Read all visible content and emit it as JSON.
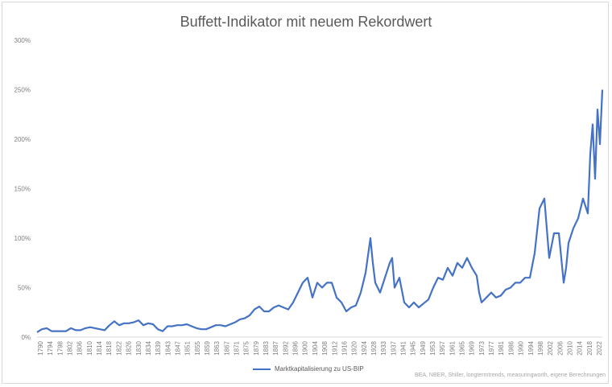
{
  "chart_data": {
    "type": "line",
    "title": "Buffett-Indikator mit neuem Rekordwert",
    "xlabel": "",
    "ylabel": "",
    "ylim": [
      0,
      300
    ],
    "y_ticks": [
      "0%",
      "50%",
      "100%",
      "150%",
      "200%",
      "250%",
      "300%"
    ],
    "x_tick_labels": [
      "1790",
      "1794",
      "1798",
      "1802",
      "1806",
      "1810",
      "1814",
      "1818",
      "1822",
      "1826",
      "1830",
      "1834",
      "1839",
      "1843",
      "1847",
      "1851",
      "1855",
      "1859",
      "1863",
      "1867",
      "1871",
      "1875",
      "1879",
      "1883",
      "1887",
      "1892",
      "1896",
      "1900",
      "1904",
      "1908",
      "1912",
      "1916",
      "1920",
      "1924",
      "1928",
      "1933",
      "1937",
      "1941",
      "1945",
      "1949",
      "1953",
      "1957",
      "1961",
      "1965",
      "1969",
      "1973",
      "1977",
      "1981",
      "1986",
      "1990",
      "1994",
      "1998",
      "2002",
      "2006",
      "2010",
      "2014",
      "2018",
      "2022"
    ],
    "grid": false,
    "legend_position": "bottom",
    "series": [
      {
        "name": "Marktkapitalisierung zu US-BIP",
        "color": "#4472c4",
        "x": [
          1790,
          1792,
          1794,
          1796,
          1798,
          1800,
          1802,
          1804,
          1806,
          1808,
          1810,
          1812,
          1814,
          1816,
          1818,
          1820,
          1822,
          1824,
          1826,
          1828,
          1830,
          1832,
          1834,
          1836,
          1838,
          1840,
          1842,
          1844,
          1846,
          1848,
          1850,
          1852,
          1854,
          1856,
          1858,
          1860,
          1862,
          1864,
          1866,
          1868,
          1870,
          1872,
          1874,
          1876,
          1878,
          1880,
          1882,
          1884,
          1886,
          1888,
          1890,
          1892,
          1894,
          1896,
          1898,
          1900,
          1902,
          1904,
          1906,
          1908,
          1910,
          1912,
          1914,
          1916,
          1918,
          1920,
          1922,
          1924,
          1926,
          1928,
          1929,
          1930,
          1932,
          1934,
          1936,
          1937,
          1938,
          1940,
          1942,
          1944,
          1946,
          1948,
          1950,
          1952,
          1954,
          1956,
          1958,
          1960,
          1962,
          1964,
          1966,
          1968,
          1970,
          1972,
          1973,
          1974,
          1976,
          1978,
          1980,
          1982,
          1984,
          1986,
          1988,
          1990,
          1992,
          1994,
          1996,
          1998,
          2000,
          2002,
          2004,
          2006,
          2008,
          2009,
          2010,
          2012,
          2014,
          2016,
          2018,
          2019,
          2020,
          2021,
          2022,
          2023,
          2024
        ],
        "y": [
          5,
          8,
          9,
          6,
          6,
          6,
          6,
          9,
          7,
          7,
          9,
          10,
          9,
          8,
          7,
          12,
          16,
          12,
          14,
          14,
          15,
          17,
          12,
          14,
          13,
          8,
          6,
          11,
          11,
          12,
          12,
          13,
          11,
          9,
          8,
          8,
          10,
          12,
          12,
          11,
          13,
          15,
          18,
          19,
          22,
          28,
          31,
          26,
          26,
          30,
          32,
          30,
          28,
          35,
          45,
          55,
          60,
          40,
          55,
          50,
          55,
          55,
          40,
          35,
          26,
          30,
          32,
          45,
          65,
          100,
          75,
          55,
          45,
          60,
          75,
          80,
          50,
          60,
          35,
          30,
          35,
          30,
          34,
          38,
          50,
          60,
          58,
          70,
          62,
          75,
          70,
          80,
          70,
          62,
          45,
          35,
          40,
          45,
          40,
          42,
          48,
          50,
          55,
          55,
          60,
          60,
          85,
          130,
          140,
          80,
          105,
          105,
          55,
          70,
          95,
          110,
          120,
          140,
          125,
          185,
          215,
          160,
          230,
          195,
          250
        ]
      }
    ],
    "source_note": "BEA, NBER, Shiller, longtermtrends, measuringworth, eigene Berechnungen"
  }
}
